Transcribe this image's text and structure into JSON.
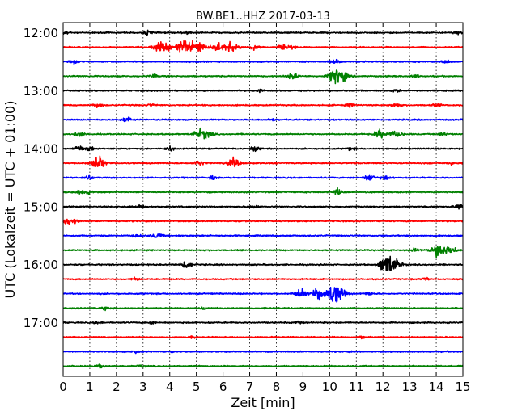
{
  "chart_data": {
    "type": "line",
    "title": "BW.BE1..HHZ 2017-03-13",
    "xlabel": "Zeit  [min]",
    "ylabel": "UTC (Lokalzeit = UTC + 01:00)",
    "xlim": [
      0,
      15
    ],
    "x_ticks": [
      "0",
      "1",
      "2",
      "3",
      "4",
      "5",
      "6",
      "7",
      "8",
      "9",
      "10",
      "11",
      "12",
      "13",
      "14",
      "15"
    ],
    "y_ticks": [
      "12:00",
      "13:00",
      "14:00",
      "15:00",
      "16:00",
      "17:00"
    ],
    "grid": "vertical dotted",
    "trace_colors": [
      "#000000",
      "#ff0000",
      "#0000ff",
      "#008000"
    ],
    "traces": [
      {
        "start": "12:00",
        "events": [
          [
            0.1,
            0.3
          ],
          [
            3.2,
            0.4
          ],
          [
            4.6,
            0.3
          ],
          [
            14.8,
            0.25
          ]
        ]
      },
      {
        "start": "12:15",
        "events": [
          [
            3.6,
            0.9
          ],
          [
            3.9,
            0.5
          ],
          [
            4.5,
            1.2
          ],
          [
            4.9,
            0.8
          ],
          [
            5.2,
            0.7
          ],
          [
            5.8,
            0.8
          ],
          [
            6.3,
            1.0
          ],
          [
            7.2,
            0.5
          ],
          [
            8.2,
            0.4
          ],
          [
            8.6,
            0.4
          ]
        ]
      },
      {
        "start": "12:30",
        "events": [
          [
            0.4,
            0.3
          ],
          [
            10.2,
            0.4
          ],
          [
            14.4,
            0.3
          ]
        ]
      },
      {
        "start": "12:45",
        "events": [
          [
            3.4,
            0.3
          ],
          [
            8.6,
            0.6
          ],
          [
            10.3,
            1.6
          ],
          [
            13.2,
            0.25
          ]
        ]
      },
      {
        "start": "13:00",
        "events": [
          [
            7.4,
            0.25
          ],
          [
            12.5,
            0.25
          ]
        ]
      },
      {
        "start": "13:15",
        "events": [
          [
            1.3,
            0.35
          ],
          [
            3.3,
            0.2
          ],
          [
            10.8,
            0.35
          ],
          [
            12.5,
            0.4
          ],
          [
            14.0,
            0.25
          ]
        ]
      },
      {
        "start": "13:30",
        "events": [
          [
            2.4,
            0.5
          ],
          [
            7.8,
            0.2
          ]
        ]
      },
      {
        "start": "13:45",
        "events": [
          [
            0.6,
            0.4
          ],
          [
            5.1,
            0.8
          ],
          [
            5.4,
            0.6
          ],
          [
            11.9,
            0.8
          ],
          [
            12.5,
            0.7
          ],
          [
            14.3,
            0.3
          ]
        ]
      },
      {
        "start": "14:00",
        "events": [
          [
            0.6,
            0.5
          ],
          [
            1.0,
            0.4
          ],
          [
            4.0,
            0.35
          ],
          [
            7.2,
            0.35
          ],
          [
            10.8,
            0.25
          ]
        ]
      },
      {
        "start": "14:15",
        "events": [
          [
            1.3,
            1.2
          ],
          [
            5.1,
            0.5
          ],
          [
            6.4,
            0.8
          ],
          [
            14.6,
            0.25
          ]
        ]
      },
      {
        "start": "14:30",
        "events": [
          [
            1.0,
            0.3
          ],
          [
            5.6,
            0.3
          ],
          [
            11.5,
            0.6
          ],
          [
            12.1,
            0.3
          ]
        ]
      },
      {
        "start": "14:45",
        "events": [
          [
            0.6,
            0.3
          ],
          [
            1.0,
            0.3
          ],
          [
            10.3,
            0.6
          ]
        ]
      },
      {
        "start": "15:00",
        "events": [
          [
            2.9,
            0.25
          ],
          [
            7.2,
            0.25
          ],
          [
            14.9,
            0.5
          ]
        ]
      },
      {
        "start": "15:15",
        "events": [
          [
            0.2,
            0.6
          ],
          [
            0.5,
            0.3
          ]
        ]
      },
      {
        "start": "15:30",
        "events": [
          [
            2.8,
            0.3
          ],
          [
            3.5,
            0.5
          ]
        ]
      },
      {
        "start": "15:45",
        "events": [
          [
            14.1,
            1.4
          ],
          [
            14.6,
            0.6
          ],
          [
            13.2,
            0.3
          ]
        ]
      },
      {
        "start": "16:00",
        "events": [
          [
            4.6,
            0.7
          ],
          [
            12.3,
            1.8
          ],
          [
            12.0,
            0.5
          ]
        ]
      },
      {
        "start": "16:15",
        "events": [
          [
            2.7,
            0.25
          ],
          [
            13.6,
            0.2
          ]
        ]
      },
      {
        "start": "16:30",
        "events": [
          [
            8.9,
            0.8
          ],
          [
            9.6,
            1.0
          ],
          [
            10.2,
            1.9
          ],
          [
            11.5,
            0.3
          ]
        ]
      },
      {
        "start": "16:45",
        "events": [
          [
            1.6,
            0.25
          ],
          [
            5.3,
            0.2
          ]
        ]
      },
      {
        "start": "17:00",
        "events": [
          [
            1.3,
            0.15
          ],
          [
            3.3,
            0.2
          ],
          [
            8.8,
            0.2
          ]
        ]
      },
      {
        "start": "17:15",
        "events": [
          [
            4.8,
            0.15
          ],
          [
            11.2,
            0.2
          ]
        ]
      },
      {
        "start": "17:30",
        "events": [
          [
            2.7,
            0.25
          ]
        ]
      },
      {
        "start": "17:45",
        "events": [
          [
            1.4,
            0.25
          ],
          [
            2.9,
            0.2
          ]
        ]
      }
    ]
  }
}
